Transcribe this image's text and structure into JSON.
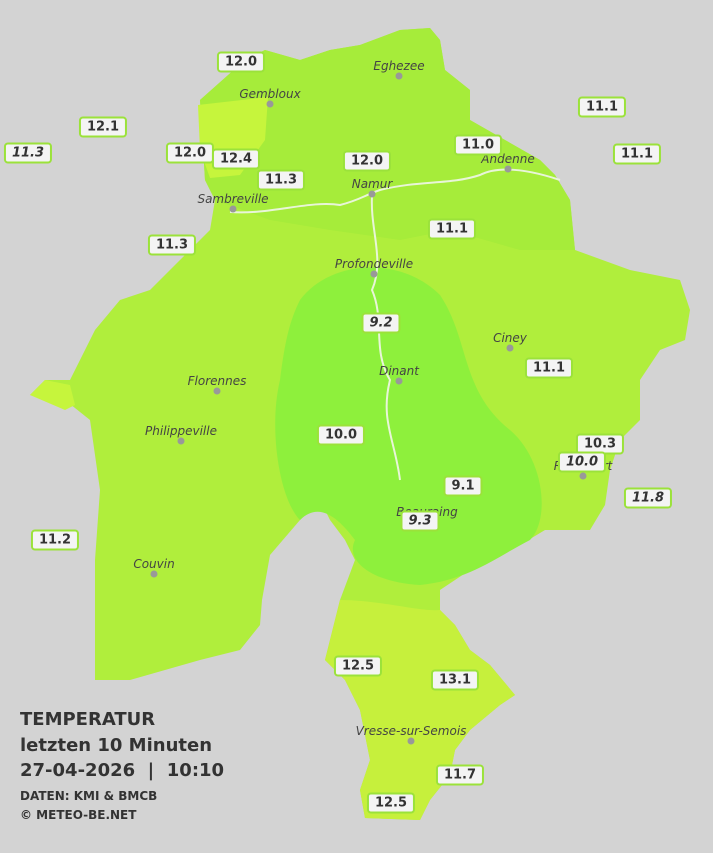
{
  "legend": {
    "title": "TEMPERATUR",
    "subtitle": "letzten 10 Minuten",
    "timestamp": "27-04-2026  |  10:10",
    "source": "DATEN: KMI & BMCB",
    "copyright": "© METEO-BE.NET"
  },
  "cities": [
    "Eghezee",
    "Gembloux",
    "Andenne",
    "Namur",
    "Sambreville",
    "Profondeville",
    "Ciney",
    "Dinant",
    "Florennes",
    "Philippeville",
    "Rochefort",
    "Beauraing",
    "Couvin",
    "Vresse-sur-Semois"
  ],
  "stations": [
    "12.0",
    "12.1",
    "11.3",
    "12.0",
    "12.4",
    "11.3",
    "12.0",
    "11.0",
    "11.1",
    "11.1",
    "11.3",
    "11.1",
    "9.2",
    "11.1",
    "10.0",
    "10.3",
    "10.0",
    "9.1",
    "11.8",
    "9.3",
    "11.2",
    "12.5",
    "13.1",
    "11.7",
    "12.5"
  ]
}
